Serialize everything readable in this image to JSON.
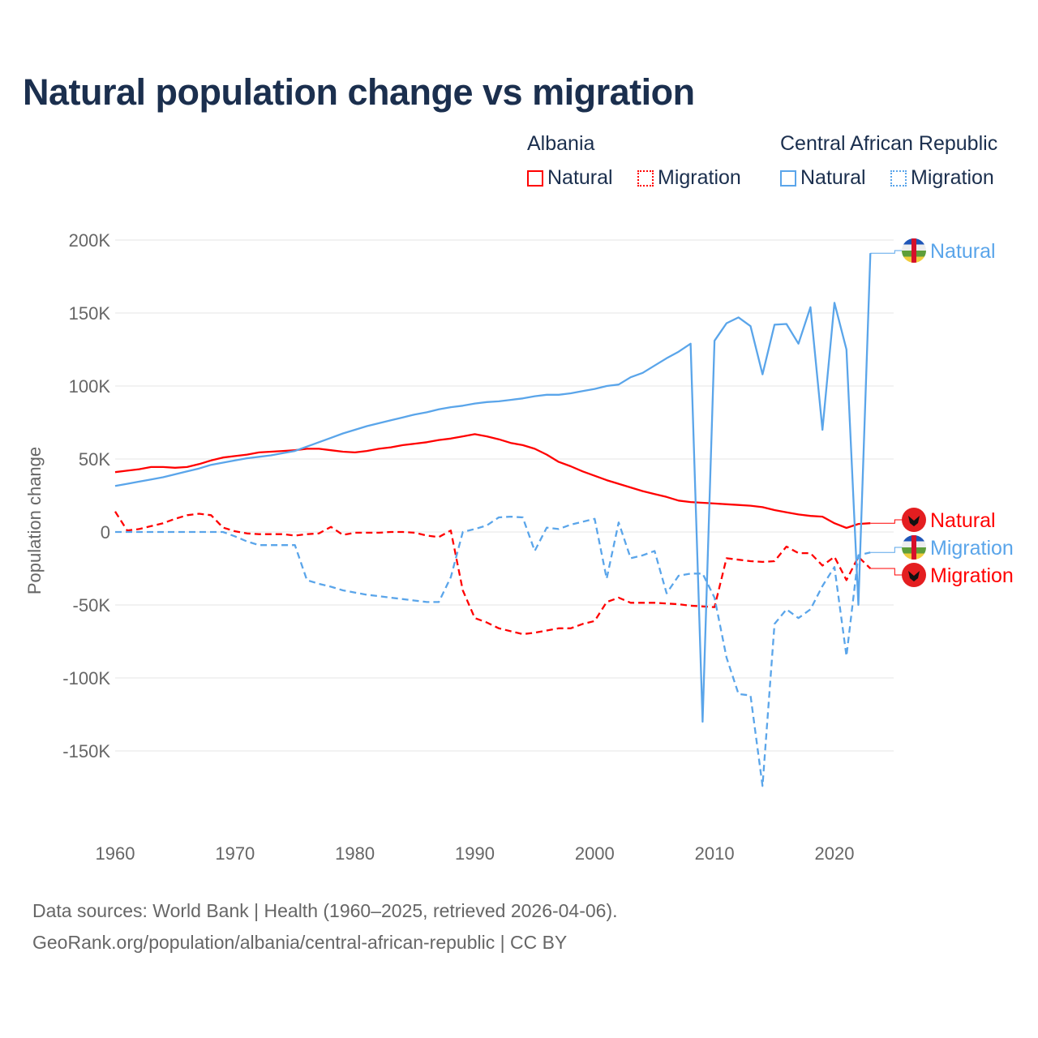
{
  "title": "Natural population change vs migration",
  "legend": {
    "groups": [
      {
        "name": "Albania",
        "color": "#ff0000",
        "items": [
          "Natural",
          "Migration"
        ]
      },
      {
        "name": "Central African Republic",
        "color": "#5aa5ea",
        "items": [
          "Natural",
          "Migration"
        ]
      }
    ]
  },
  "footer": {
    "line1": "Data sources: World Bank | Health (1960–2025, retrieved 2026-04-06).",
    "line2": "GeoRank.org/population/albania/central-african-republic | CC BY"
  },
  "chart_data": {
    "type": "line",
    "title": "Natural population change vs migration",
    "xlabel": "",
    "ylabel": "Population change",
    "xlim": [
      1960,
      2025
    ],
    "ylim": [
      -190000,
      210000
    ],
    "grid": true,
    "legend_placement": "top-right",
    "x_ticks": [
      1960,
      1970,
      1980,
      1990,
      2000,
      2010,
      2020
    ],
    "x_tick_labels": [
      "1960",
      "1970",
      "1980",
      "1990",
      "2000",
      "2010",
      "2020"
    ],
    "y_ticks": [
      200000,
      150000,
      100000,
      50000,
      0,
      -50000,
      -100000,
      -150000
    ],
    "y_tick_labels": [
      "200K",
      "150K",
      "100K",
      "50K",
      "0",
      "-50K",
      "-100K",
      "-150K"
    ],
    "x_start": 1960,
    "series": [
      {
        "name": "Albania Natural",
        "end_label": "Natural",
        "country": "Albania",
        "color": "#ff0000",
        "dash": false,
        "values_k": [
          41,
          42,
          43,
          44.5,
          44.5,
          44,
          44.5,
          46.5,
          49,
          51,
          52,
          53,
          54.5,
          55,
          55.5,
          56,
          57,
          57,
          56,
          55,
          54.5,
          55.5,
          57,
          58,
          59.5,
          60.5,
          61.5,
          63,
          64,
          65.5,
          67,
          65.5,
          63.5,
          61,
          59.5,
          57,
          53,
          48,
          45,
          41.5,
          38.5,
          35.5,
          33,
          30.5,
          28,
          26,
          24,
          21.5,
          20.5,
          20,
          19.5,
          19,
          18.5,
          18,
          17,
          15,
          13.5,
          12,
          11,
          10.5,
          6,
          2.8,
          5.5,
          6
        ]
      },
      {
        "name": "Albania Migration",
        "end_label": "Migration",
        "country": "Albania",
        "color": "#ff0000",
        "dash": true,
        "values_k": [
          14,
          1,
          2,
          4,
          6,
          9,
          11.5,
          12.5,
          11.5,
          3,
          0.5,
          -1,
          -1.5,
          -1.5,
          -1.5,
          -2.5,
          -1.5,
          -1,
          3.5,
          -2,
          -0.5,
          -0.5,
          -0.5,
          0,
          0,
          -0.5,
          -2.5,
          -3.5,
          1,
          -40,
          -59,
          -62,
          -66,
          -68,
          -70,
          -69,
          -67.5,
          -66,
          -66,
          -63,
          -61,
          -48,
          -45,
          -48.5,
          -48.5,
          -48.5,
          -49,
          -49.5,
          -50.5,
          -51,
          -51.5,
          -18,
          -19,
          -20,
          -20.5,
          -20,
          -10,
          -14.5,
          -14.5,
          -23,
          -17,
          -33,
          -17,
          -25
        ]
      },
      {
        "name": "Central African Republic Natural",
        "end_label": "Natural",
        "country": "Central African Republic",
        "color": "#5aa5ea",
        "dash": false,
        "values_k": [
          31.5,
          33,
          34.5,
          36,
          37.5,
          39.5,
          41.5,
          43.5,
          46,
          47.5,
          49,
          50.5,
          51.5,
          52.5,
          54,
          55.5,
          58.5,
          61.5,
          64.5,
          67.5,
          70,
          72.5,
          74.5,
          76.5,
          78.5,
          80.5,
          82,
          84,
          85.5,
          86.5,
          88,
          89,
          89.5,
          90.5,
          91.5,
          93,
          94,
          94,
          95,
          96.5,
          98,
          100,
          101,
          106,
          109,
          114,
          119,
          123.5,
          129,
          -130,
          131,
          143,
          147,
          141,
          108,
          142,
          142.5,
          129,
          154,
          70,
          157,
          125,
          -50,
          191
        ]
      },
      {
        "name": "Central African Republic Migration",
        "end_label": "Migration",
        "country": "Central African Republic",
        "color": "#5aa5ea",
        "dash": true,
        "values_k": [
          0,
          0,
          0,
          0,
          0,
          0,
          0,
          0,
          0,
          0,
          -3,
          -6.5,
          -9,
          -9,
          -9,
          -9,
          -33,
          -35.5,
          -37.5,
          -40,
          -41.5,
          -43,
          -44,
          -45,
          -46,
          -47,
          -48,
          -48,
          -31,
          0,
          2,
          4.5,
          10,
          10.5,
          10,
          -13,
          3,
          2,
          5,
          7,
          9,
          -32,
          6.5,
          -18,
          -16,
          -13,
          -42,
          -30,
          -28.5,
          -28.5,
          -45,
          -86,
          -111,
          -112,
          -174,
          -63,
          -53,
          -59,
          -53,
          -37,
          -24,
          -85,
          -16,
          -14
        ]
      }
    ]
  }
}
